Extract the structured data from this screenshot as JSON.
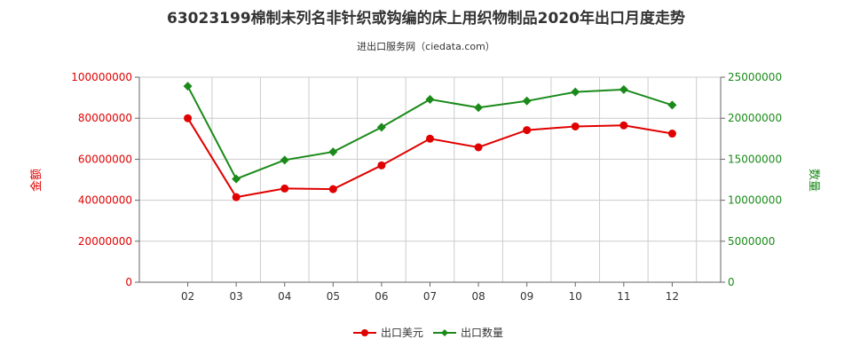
{
  "colors": {
    "left_axis": "#e00000",
    "right_axis": "#1a8a1a",
    "grid": "#cccccc",
    "axis": "#666666",
    "text": "#333333"
  },
  "chart_data": {
    "type": "line",
    "title": "63023199棉制未列名非针织或钩编的床上用织物制品2020年出口月度走势",
    "subtitle": "进出口服务网（ciedata.com）",
    "categories": [
      "02",
      "03",
      "04",
      "05",
      "06",
      "07",
      "08",
      "09",
      "10",
      "11",
      "12"
    ],
    "left_axis": {
      "label": "金额",
      "ylim": [
        0,
        100000000
      ],
      "ticks": [
        "0",
        "20000000",
        "40000000",
        "60000000",
        "80000000",
        "100000000"
      ]
    },
    "right_axis": {
      "label": "数量",
      "ylim": [
        0,
        25000000
      ],
      "ticks": [
        "0",
        "5000000",
        "10000000",
        "15000000",
        "20000000",
        "25000000"
      ]
    },
    "series": [
      {
        "name": "出口美元",
        "axis": "left",
        "color": "#e00000",
        "marker": "circle",
        "values": [
          80000000,
          41500000,
          45700000,
          45400000,
          57000000,
          70000000,
          65800000,
          74200000,
          76000000,
          76500000,
          72500000
        ]
      },
      {
        "name": "出口数量",
        "axis": "right",
        "color": "#1a8a1a",
        "marker": "diamond",
        "values": [
          23900000,
          12600000,
          14900000,
          15900000,
          18900000,
          22300000,
          21300000,
          22100000,
          23200000,
          23500000,
          21600000
        ]
      }
    ],
    "grid": true,
    "legend": "bottom-center"
  }
}
